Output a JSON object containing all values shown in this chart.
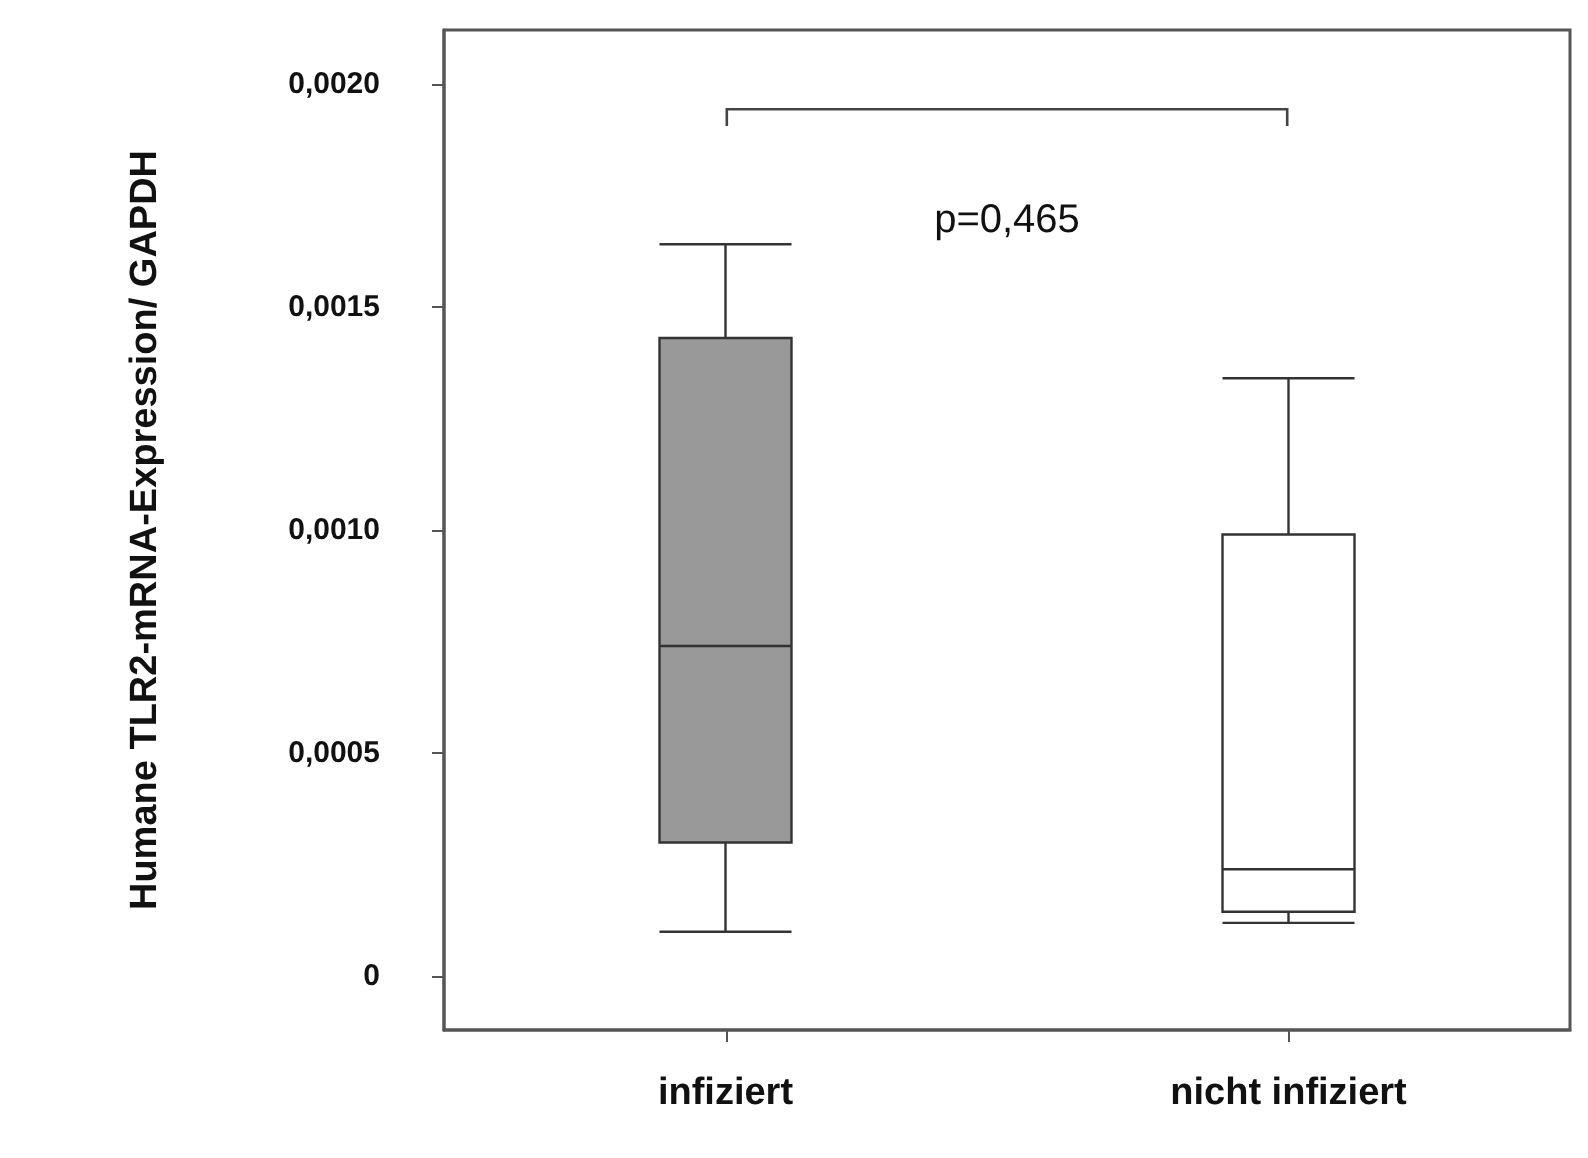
{
  "chart_data": {
    "type": "box",
    "ylabel": "Humane TLR2-mRNA-Expression/ GAPDH",
    "categories": [
      "infiziert",
      "nicht infiziert"
    ],
    "boxes": [
      {
        "low": 0.0001,
        "q1": 0.0003,
        "median": 0.00074,
        "q3": 0.00143,
        "high": 0.00164
      },
      {
        "low": 0.00012,
        "q1": 0.000145,
        "median": 0.00024,
        "q3": 0.00099,
        "high": 0.00134
      }
    ],
    "colors": [
      "#999999",
      "#ffffff"
    ],
    "ylim": [
      -0.00012,
      0.00212
    ],
    "yticks": [
      {
        "value": 0,
        "label": "0"
      },
      {
        "value": 0.0005,
        "label": "0,0005"
      },
      {
        "value": 0.001,
        "label": "0,0010"
      },
      {
        "value": 0.0015,
        "label": "0,0015"
      },
      {
        "value": 0.002,
        "label": "0,0020"
      }
    ],
    "annotations": [
      "p=0,465"
    ],
    "grid": false
  }
}
